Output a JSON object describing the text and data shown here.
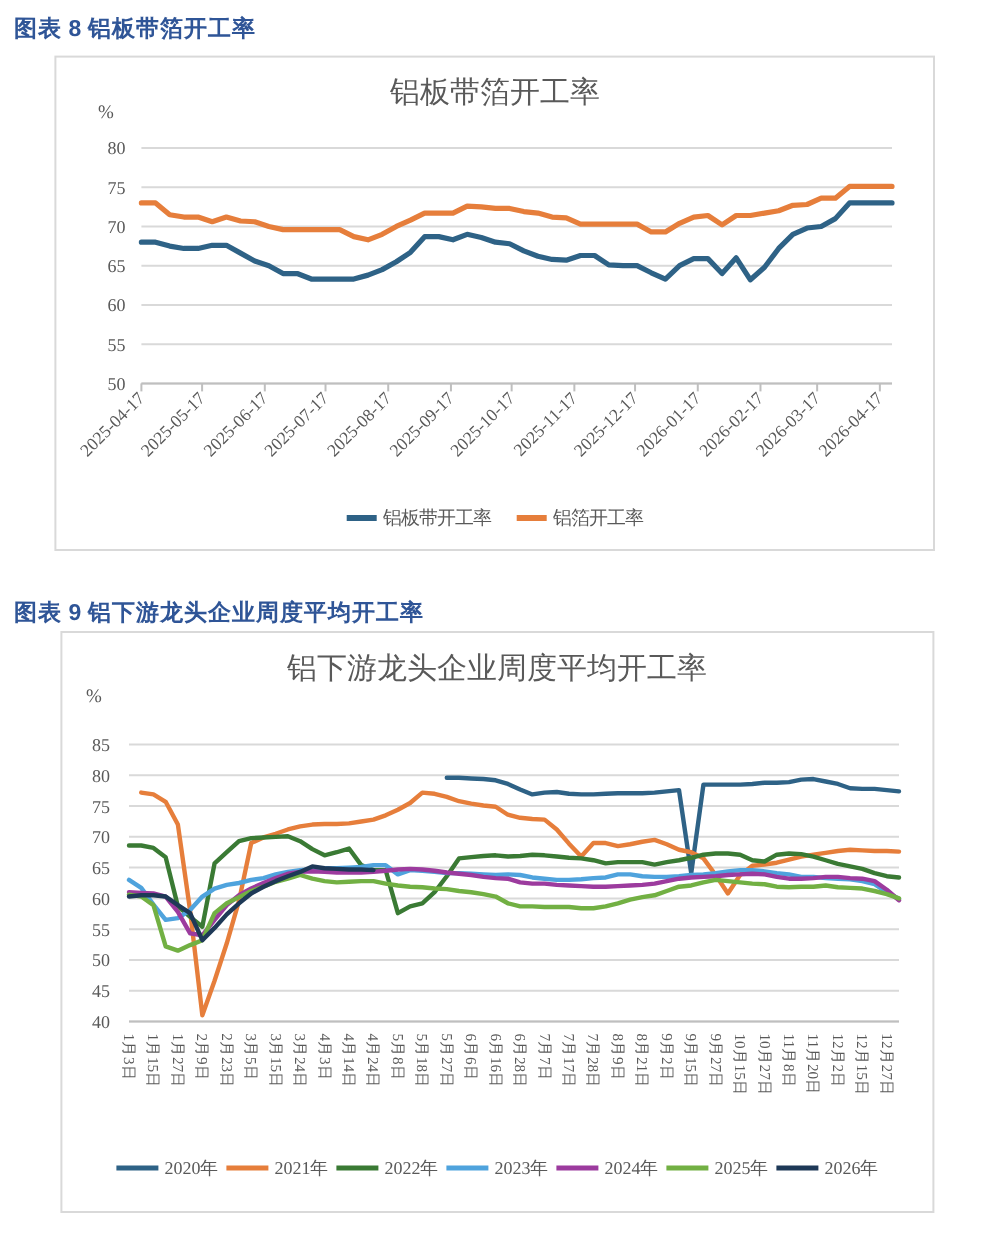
{
  "chart_data": [
    {
      "type": "line",
      "title": "图表 8 铝板带箔开工率",
      "subtitle": "铝板带箔开工率",
      "ylabel": "%",
      "x": [
        "2025-04-17",
        "2025-04-24",
        "2025-05-01",
        "2025-05-08",
        "2025-05-15",
        "2025-05-22",
        "2025-05-29",
        "2025-06-05",
        "2025-06-12",
        "2025-06-19",
        "2025-06-26",
        "2025-07-03",
        "2025-07-10",
        "2025-07-17",
        "2025-07-24",
        "2025-07-31",
        "2025-08-07",
        "2025-08-14",
        "2025-08-21",
        "2025-08-28",
        "2025-09-04",
        "2025-09-11",
        "2025-09-18",
        "2025-09-25",
        "2025-10-02",
        "2025-10-09",
        "2025-10-16",
        "2025-10-23",
        "2025-10-30",
        "2025-11-06",
        "2025-11-13",
        "2025-11-20",
        "2025-11-27",
        "2025-12-04",
        "2025-12-11",
        "2025-12-18",
        "2025-12-25",
        "2026-01-01",
        "2026-01-08",
        "2026-01-15",
        "2026-01-22",
        "2026-01-29",
        "2026-02-05",
        "2026-02-12",
        "2026-02-19",
        "2026-02-26",
        "2026-03-05",
        "2026-03-12",
        "2026-03-19",
        "2026-03-26",
        "2026-04-02",
        "2026-04-09",
        "2026-04-16",
        "2026-04-23"
      ],
      "xlim": [
        "2025-04-17",
        "2026-04-23"
      ],
      "xticks": [
        "2025-04-17",
        "2025-05-17",
        "2025-06-17",
        "2025-07-17",
        "2025-08-17",
        "2025-09-17",
        "2025-10-17",
        "2025-11-17",
        "2025-12-17",
        "2026-01-17",
        "2026-02-17",
        "2026-03-17",
        "2026-04-17"
      ],
      "ylim": [
        50,
        80
      ],
      "yticks": [
        50,
        55,
        60,
        65,
        70,
        75,
        80
      ],
      "grid": "y",
      "legend": "bottom",
      "series": [
        {
          "name": "铝板带开工率",
          "color": "#2e6286",
          "values": [
            68.0,
            68.0,
            67.5,
            67.2,
            67.2,
            67.6,
            67.6,
            66.6,
            65.6,
            65.0,
            64.0,
            64.0,
            63.3,
            63.3,
            63.3,
            63.3,
            63.8,
            64.5,
            65.5,
            66.7,
            68.7,
            68.7,
            68.3,
            69.0,
            68.6,
            68.0,
            67.8,
            66.9,
            66.2,
            65.8,
            65.7,
            66.3,
            66.3,
            65.1,
            65.0,
            65.0,
            64.1,
            63.3,
            65.0,
            65.9,
            65.9,
            64.0,
            66.0,
            63.2,
            64.8,
            67.2,
            69.0,
            69.8,
            70.0,
            71.0,
            73.0,
            73.0,
            73.0,
            73.0
          ]
        },
        {
          "name": "铝箔开工率",
          "color": "#e67e3b",
          "values": [
            73.0,
            73.0,
            71.5,
            71.2,
            71.2,
            70.6,
            71.2,
            70.7,
            70.6,
            70.0,
            69.6,
            69.6,
            69.6,
            69.6,
            69.6,
            68.7,
            68.3,
            69.0,
            70.0,
            70.8,
            71.7,
            71.7,
            71.7,
            72.6,
            72.5,
            72.3,
            72.3,
            71.9,
            71.7,
            71.2,
            71.1,
            70.3,
            70.3,
            70.3,
            70.3,
            70.3,
            69.3,
            69.3,
            70.4,
            71.2,
            71.4,
            70.2,
            71.4,
            71.4,
            71.7,
            72.0,
            72.7,
            72.8,
            73.6,
            73.6,
            75.1,
            75.1,
            75.1,
            75.1
          ]
        }
      ]
    },
    {
      "type": "line",
      "title": "图表 9 铝下游龙头企业周度平均开工率",
      "subtitle": "铝下游龙头企业周度平均开工率",
      "ylabel": "%",
      "categories": [
        "1月3日",
        null,
        "1月15日",
        null,
        "1月27日",
        null,
        "2月9日",
        null,
        "2月23日",
        null,
        "3月5日",
        null,
        "3月15日",
        null,
        "3月24日",
        null,
        "4月3日",
        null,
        "4月14日",
        null,
        "4月24日",
        null,
        "5月8日",
        null,
        "5月18日",
        null,
        "5月27日",
        null,
        "6月6日",
        null,
        "6月16日",
        null,
        "6月28日",
        null,
        "7月7日",
        null,
        "7月17日",
        null,
        "7月28日",
        null,
        "8月9日",
        null,
        "8月21日",
        null,
        "9月2日",
        null,
        "9月15日",
        null,
        "9月27日",
        null,
        "10月15日",
        null,
        "10月27日",
        null,
        "11月8日",
        null,
        "11月20日",
        null,
        "12月2日",
        null,
        "12月15日",
        null,
        "12月27日",
        null
      ],
      "ylim": [
        40,
        85
      ],
      "yticks": [
        40,
        45,
        50,
        55,
        60,
        65,
        70,
        75,
        80,
        85
      ],
      "grid": "y",
      "legend": "bottom",
      "series": [
        {
          "name": "2020年",
          "color": "#2e6286",
          "values": [
            null,
            null,
            null,
            null,
            null,
            null,
            null,
            null,
            null,
            null,
            null,
            null,
            null,
            null,
            null,
            null,
            null,
            null,
            null,
            null,
            null,
            null,
            null,
            null,
            null,
            null,
            79.6,
            79.6,
            79.5,
            79.4,
            79.2,
            78.6,
            77.7,
            76.9,
            77.2,
            77.3,
            77.0,
            76.9,
            76.9,
            77.0,
            77.1,
            77.1,
            77.1,
            77.2,
            77.4,
            77.6,
            64.1,
            78.5,
            78.5,
            78.5,
            78.5,
            78.6,
            78.8,
            78.8,
            78.9,
            79.3,
            79.4,
            79.0,
            78.6,
            77.9,
            77.8,
            77.8,
            77.6,
            77.4
          ]
        },
        {
          "name": "2021年",
          "color": "#e67e3b",
          "values": [
            null,
            77.2,
            76.9,
            75.7,
            72,
            58,
            41,
            46.6,
            52.7,
            59.6,
            69,
            69.9,
            70.5,
            71.2,
            71.7,
            72,
            72.1,
            72.1,
            72.2,
            72.5,
            72.8,
            73.5,
            74.4,
            75.5,
            77.2,
            77,
            76.5,
            75.8,
            75.4,
            75.1,
            74.9,
            73.6,
            73.1,
            72.9,
            72.8,
            71.2,
            68.9,
            66.8,
            69,
            69,
            68.5,
            68.8,
            69.2,
            69.5,
            68.8,
            67.9,
            67.5,
            66.5,
            63.8,
            60.8,
            63.8,
            65.3,
            65.5,
            65.8,
            66.3,
            66.8,
            67.1,
            67.4,
            67.7,
            67.9,
            67.8,
            67.7,
            67.7,
            67.6
          ]
        },
        {
          "name": "2022年",
          "color": "#3a7a34",
          "values": [
            68.6,
            68.6,
            68.2,
            66.7,
            58.7,
            57,
            55.4,
            65.7,
            67.5,
            69.3,
            69.8,
            69.9,
            70,
            70.1,
            69.3,
            68,
            67,
            67.5,
            68.1,
            65.4,
            64.6,
            64.6,
            57.6,
            58.7,
            59.2,
            61,
            63.6,
            66.5,
            66.7,
            66.9,
            67,
            66.8,
            66.9,
            67.1,
            67,
            66.8,
            66.6,
            66.5,
            66.2,
            65.7,
            65.9,
            65.9,
            65.9,
            65.5,
            65.9,
            66.2,
            66.6,
            67.1,
            67.3,
            67.3,
            67.1,
            66.2,
            66,
            67.1,
            67.3,
            67.2,
            66.8,
            66.2,
            65.6,
            65.2,
            64.8,
            64.1,
            63.6,
            63.4
          ]
        },
        {
          "name": "2023年",
          "color": "#4fa3dd",
          "values": [
            63,
            61.7,
            59,
            56.5,
            56.8,
            58.1,
            60.3,
            61.6,
            62.2,
            62.5,
            63,
            63.3,
            63.9,
            64.3,
            64.6,
            64.8,
            64.9,
            64.9,
            65,
            65.1,
            65.4,
            65.4,
            63.9,
            64.6,
            64.5,
            64.3,
            64.1,
            64.1,
            64,
            63.9,
            63.8,
            63.9,
            63.8,
            63.4,
            63.2,
            63,
            63,
            63.1,
            63.3,
            63.4,
            63.9,
            63.9,
            63.6,
            63.5,
            63.5,
            63.6,
            63.8,
            63.9,
            64.1,
            64.4,
            64.6,
            64.6,
            64.4,
            64.1,
            63.9,
            63.5,
            63.5,
            63.3,
            63.2,
            63.1,
            62.8,
            62.3,
            61,
            59.9
          ]
        },
        {
          "name": "2024年",
          "color": "#9c3b9e",
          "values": [
            61,
            60.9,
            60.8,
            60.3,
            57.8,
            54.3,
            54,
            56.5,
            58.9,
            60.5,
            61.6,
            62.5,
            63.3,
            64,
            64.3,
            64.4,
            64.3,
            64.2,
            64.2,
            64.2,
            64.3,
            64.5,
            64.7,
            64.8,
            64.7,
            64.5,
            64.2,
            64,
            63.8,
            63.5,
            63.3,
            63.2,
            62.6,
            62.4,
            62.4,
            62.2,
            62.1,
            62,
            61.9,
            61.9,
            62,
            62.1,
            62.2,
            62.4,
            62.8,
            63.2,
            63.4,
            63.5,
            63.6,
            63.8,
            63.9,
            64,
            63.9,
            63.5,
            63.2,
            63.2,
            63.3,
            63.5,
            63.5,
            63.3,
            63.2,
            62.8,
            61.4,
            59.7
          ]
        },
        {
          "name": "2025年",
          "color": "#72b043",
          "values": [
            60.6,
            60.3,
            58.9,
            52.2,
            51.5,
            52.4,
            53.2,
            57.6,
            59.2,
            60.2,
            61.2,
            61.9,
            62.7,
            63.2,
            63.8,
            63.2,
            62.8,
            62.6,
            62.7,
            62.8,
            62.8,
            62.4,
            62.1,
            61.9,
            61.8,
            61.6,
            61.5,
            61.2,
            61,
            60.7,
            60.3,
            59.2,
            58.7,
            58.7,
            58.6,
            58.6,
            58.6,
            58.4,
            58.4,
            58.7,
            59.2,
            59.8,
            60.2,
            60.5,
            61.2,
            61.9,
            62.1,
            62.6,
            63,
            62.8,
            62.6,
            62.4,
            62.3,
            61.9,
            61.8,
            61.9,
            61.9,
            62.1,
            61.8,
            61.7,
            61.6,
            61.2,
            60.7,
            60
          ]
        },
        {
          "name": "2026年",
          "color": "#1e3957",
          "values": [
            60.3,
            60.5,
            60.5,
            60.3,
            58.9,
            57.6,
            53.2,
            55.2,
            57.4,
            59.2,
            60.8,
            61.9,
            62.8,
            63.6,
            64.3,
            65.2,
            64.9,
            64.8,
            64.7,
            64.7,
            64.6,
            null,
            null,
            null,
            null,
            null,
            null,
            null,
            null,
            null,
            null,
            null,
            null,
            null,
            null,
            null,
            null,
            null,
            null,
            null,
            null,
            null,
            null,
            null,
            null,
            null,
            null,
            null,
            null,
            null,
            null,
            null,
            null,
            null,
            null,
            null,
            null,
            null,
            null,
            null,
            null,
            null,
            null,
            null
          ]
        }
      ]
    }
  ]
}
